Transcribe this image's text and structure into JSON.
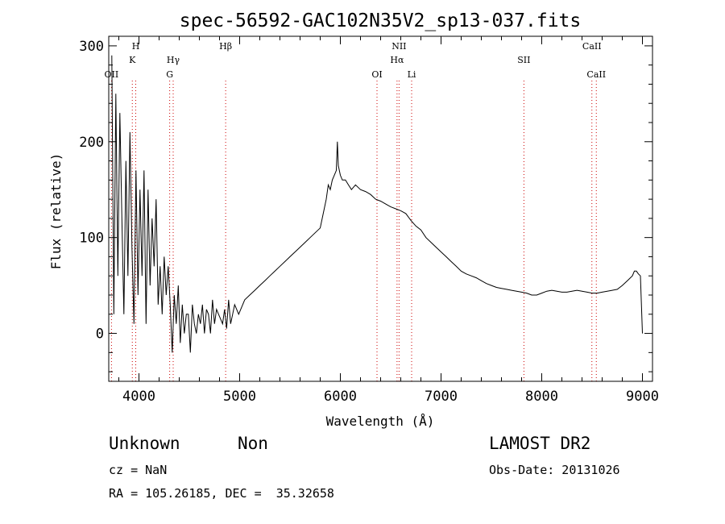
{
  "chart_data": {
    "type": "line",
    "title": "spec-56592-GAC102N35V2_sp13-037.fits",
    "xlabel": "Wavelength (Å)",
    "ylabel": "Flux (relative)",
    "xlim": [
      3700,
      9100
    ],
    "ylim": [
      -50,
      310
    ],
    "xticks": [
      4000,
      5000,
      6000,
      7000,
      8000,
      9000
    ],
    "yticks": [
      0,
      100,
      200,
      300
    ],
    "grid": false,
    "line_color": "#000000",
    "marker_color": "#cc0000",
    "spectrum_x": [
      3730,
      3750,
      3770,
      3790,
      3810,
      3830,
      3850,
      3870,
      3890,
      3910,
      3930,
      3950,
      3970,
      3990,
      4010,
      4030,
      4050,
      4070,
      4090,
      4110,
      4130,
      4150,
      4170,
      4190,
      4210,
      4230,
      4250,
      4270,
      4290,
      4310,
      4330,
      4350,
      4370,
      4390,
      4410,
      4430,
      4450,
      4470,
      4490,
      4510,
      4530,
      4550,
      4570,
      4590,
      4610,
      4630,
      4650,
      4670,
      4690,
      4710,
      4730,
      4750,
      4770,
      4790,
      4810,
      4830,
      4850,
      4870,
      4890,
      4910,
      4930,
      4950,
      4970,
      4990,
      5050,
      5100,
      5150,
      5200,
      5250,
      5300,
      5350,
      5400,
      5450,
      5500,
      5550,
      5600,
      5650,
      5700,
      5750,
      5800,
      5820,
      5840,
      5860,
      5880,
      5900,
      5920,
      5940,
      5960,
      5970,
      5980,
      6000,
      6020,
      6050,
      6080,
      6110,
      6150,
      6200,
      6250,
      6300,
      6350,
      6400,
      6450,
      6500,
      6550,
      6600,
      6650,
      6700,
      6750,
      6800,
      6850,
      6900,
      6950,
      7000,
      7050,
      7100,
      7150,
      7200,
      7250,
      7300,
      7350,
      7400,
      7450,
      7500,
      7550,
      7600,
      7650,
      7700,
      7750,
      7800,
      7850,
      7900,
      7950,
      8000,
      8050,
      8100,
      8150,
      8200,
      8250,
      8300,
      8350,
      8400,
      8450,
      8500,
      8550,
      8600,
      8650,
      8700,
      8750,
      8800,
      8850,
      8900,
      8920,
      8940,
      8960,
      8980,
      9000
    ],
    "spectrum_y": [
      290,
      20,
      250,
      60,
      230,
      120,
      20,
      180,
      60,
      210,
      90,
      10,
      170,
      40,
      150,
      60,
      170,
      10,
      150,
      50,
      120,
      70,
      140,
      30,
      70,
      20,
      80,
      40,
      70,
      30,
      -20,
      40,
      10,
      50,
      -10,
      30,
      0,
      20,
      20,
      -20,
      30,
      10,
      0,
      20,
      10,
      30,
      0,
      25,
      20,
      0,
      35,
      10,
      25,
      20,
      15,
      10,
      25,
      5,
      35,
      10,
      20,
      30,
      25,
      20,
      35,
      40,
      45,
      50,
      55,
      60,
      65,
      70,
      75,
      80,
      85,
      90,
      95,
      100,
      105,
      110,
      120,
      130,
      140,
      155,
      150,
      160,
      165,
      170,
      200,
      175,
      165,
      160,
      160,
      155,
      150,
      155,
      150,
      148,
      145,
      140,
      138,
      135,
      132,
      130,
      128,
      125,
      118,
      112,
      108,
      100,
      95,
      90,
      85,
      80,
      75,
      70,
      65,
      62,
      60,
      58,
      55,
      52,
      50,
      48,
      47,
      46,
      45,
      44,
      43,
      42,
      40,
      40,
      42,
      44,
      45,
      44,
      43,
      43,
      44,
      45,
      44,
      43,
      42,
      42,
      43,
      44,
      45,
      46,
      50,
      55,
      60,
      65,
      65,
      62,
      60,
      0
    ],
    "lines": [
      {
        "label": "OII",
        "x": 3727,
        "row": 3
      },
      {
        "label": "H",
        "x": 3968,
        "row": 1
      },
      {
        "label": "K",
        "x": 3934,
        "row": 2
      },
      {
        "label": "Hγ",
        "x": 4340,
        "row": 2
      },
      {
        "label": "G",
        "x": 4305,
        "row": 3
      },
      {
        "label": "Hβ",
        "x": 4861,
        "row": 1
      },
      {
        "label": "OI",
        "x": 6364,
        "row": 3
      },
      {
        "label": "NII",
        "x": 6583,
        "row": 1
      },
      {
        "label": "Hα",
        "x": 6563,
        "row": 2
      },
      {
        "label": "Li",
        "x": 6708,
        "row": 3
      },
      {
        "label": "SII",
        "x": 7823,
        "row": 2
      },
      {
        "label": "CaII",
        "x": 8498,
        "row": 1
      },
      {
        "label": "CaII",
        "x": 8542,
        "row": 3
      }
    ]
  },
  "info": {
    "object_class": "Unknown",
    "object_subclass": "Non",
    "survey": "LAMOST DR2",
    "cz": "cz = NaN",
    "obs_date": "Obs-Date: 20131026",
    "radec": "RA = 105.26185, DEC =  35.32658"
  }
}
